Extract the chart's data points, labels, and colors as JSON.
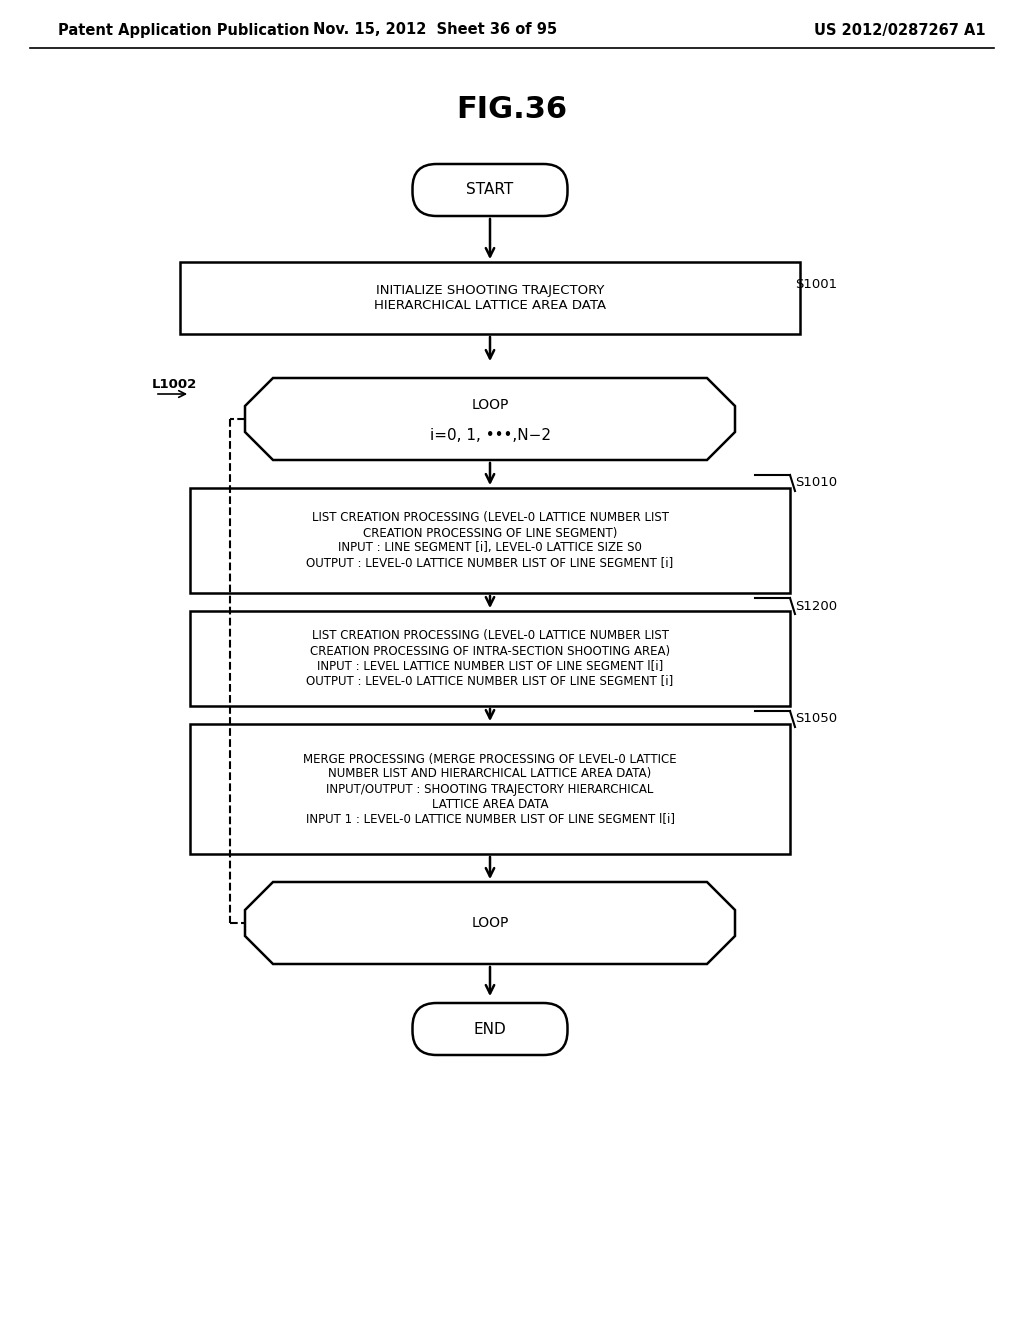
{
  "title": "FIG.36",
  "header_left": "Patent Application Publication",
  "header_mid": "Nov. 15, 2012  Sheet 36 of 95",
  "header_right": "US 2012/0287267 A1",
  "bg_color": "#ffffff",
  "start_label": "START",
  "end_label": "END",
  "box1_text": "INITIALIZE SHOOTING TRAJECTORY\nHIERARCHICAL LATTICE AREA DATA",
  "loop_top_line1": "LOOP",
  "loop_top_line2": "i=0, 1, •••,N−2",
  "box2_text": "LIST CREATION PROCESSING (LEVEL-0 LATTICE NUMBER LIST\nCREATION PROCESSING OF LINE SEGMENT)\nINPUT : LINE SEGMENT [i], LEVEL-0 LATTICE SIZE S0\nOUTPUT : LEVEL-0 LATTICE NUMBER LIST OF LINE SEGMENT [i]",
  "box3_text": "LIST CREATION PROCESSING (LEVEL-0 LATTICE NUMBER LIST\nCREATION PROCESSING OF INTRA-SECTION SHOOTING AREA)\nINPUT : LEVEL LATTICE NUMBER LIST OF LINE SEGMENT l[i]\nOUTPUT : LEVEL-0 LATTICE NUMBER LIST OF LINE SEGMENT [i]",
  "box4_text": "MERGE PROCESSING (MERGE PROCESSING OF LEVEL-0 LATTICE\nNUMBER LIST AND HIERARCHICAL LATTICE AREA DATA)\nINPUT/OUTPUT : SHOOTING TRAJECTORY HIERARCHICAL\nLATTICE AREA DATA\nINPUT 1 : LEVEL-0 LATTICE NUMBER LIST OF LINE SEGMENT l[i]",
  "loop_bottom_label": "LOOP",
  "label_s1001": "S1001",
  "label_s1010": "S1010",
  "label_s1200": "S1200",
  "label_s1050": "S1050",
  "label_l1002": "L1002"
}
